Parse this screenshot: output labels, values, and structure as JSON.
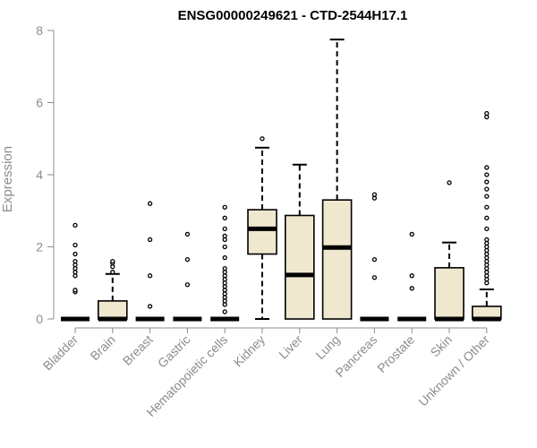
{
  "chart_data": {
    "type": "box",
    "title": "ENSG00000249621 - CTD-2544H17.1",
    "xlabel": "",
    "ylabel": "Expression",
    "ylim": [
      0,
      8
    ],
    "yticks": [
      0,
      2,
      4,
      6,
      8
    ],
    "grid": false,
    "box_fill": "#efe8cf",
    "categories": [
      "Bladder",
      "Brain",
      "Breast",
      "Gastric",
      "Hematopoietic cells",
      "Kidney",
      "Liver",
      "Lung",
      "Pancreas",
      "Prostate",
      "Skin",
      "Unknown / Other"
    ],
    "boxes": [
      {
        "q1": 0,
        "median": 0,
        "q3": 0,
        "whisker_low": 0,
        "whisker_high": 0,
        "outliers": [
          0.75,
          0.8,
          1.2,
          1.3,
          1.4,
          1.5,
          1.6,
          1.8,
          2.05,
          2.6
        ]
      },
      {
        "q1": 0,
        "median": 0,
        "q3": 0.5,
        "whisker_low": 0,
        "whisker_high": 1.25,
        "outliers": [
          1.3,
          1.45,
          1.55,
          1.6
        ]
      },
      {
        "q1": 0,
        "median": 0,
        "q3": 0,
        "whisker_low": 0,
        "whisker_high": 0,
        "outliers": [
          0.35,
          1.2,
          2.2,
          3.2
        ]
      },
      {
        "q1": 0,
        "median": 0,
        "q3": 0,
        "whisker_low": 0,
        "whisker_high": 0,
        "outliers": [
          0.95,
          1.65,
          2.35
        ]
      },
      {
        "q1": 0,
        "median": 0,
        "q3": 0,
        "whisker_low": 0,
        "whisker_high": 0,
        "outliers": [
          0.2,
          0.4,
          0.5,
          0.6,
          0.7,
          0.8,
          0.9,
          1.0,
          1.1,
          1.2,
          1.3,
          1.4,
          1.7,
          2.0,
          2.2,
          2.3,
          2.5,
          2.8,
          3.1
        ]
      },
      {
        "q1": 1.8,
        "median": 2.5,
        "q3": 3.03,
        "whisker_low": 0,
        "whisker_high": 4.75,
        "outliers": [
          5.0
        ]
      },
      {
        "q1": 0,
        "median": 1.22,
        "q3": 2.87,
        "whisker_low": 0,
        "whisker_high": 4.28,
        "outliers": []
      },
      {
        "q1": 0,
        "median": 1.98,
        "q3": 3.3,
        "whisker_low": 0,
        "whisker_high": 7.75,
        "outliers": []
      },
      {
        "q1": 0,
        "median": 0,
        "q3": 0,
        "whisker_low": 0,
        "whisker_high": 0,
        "outliers": [
          1.15,
          1.65,
          3.35,
          3.45
        ]
      },
      {
        "q1": 0,
        "median": 0,
        "q3": 0,
        "whisker_low": 0,
        "whisker_high": 0,
        "outliers": [
          0.85,
          1.2,
          2.35
        ]
      },
      {
        "q1": 0,
        "median": 0,
        "q3": 1.42,
        "whisker_low": 0,
        "whisker_high": 2.12,
        "outliers": [
          3.78
        ]
      },
      {
        "q1": 0,
        "median": 0,
        "q3": 0.35,
        "whisker_low": 0,
        "whisker_high": 0.82,
        "outliers": [
          1.0,
          1.1,
          1.2,
          1.3,
          1.4,
          1.5,
          1.6,
          1.7,
          1.8,
          1.9,
          2.0,
          2.1,
          2.2,
          2.5,
          2.8,
          3.1,
          3.4,
          3.6,
          3.8,
          4.0,
          4.2,
          5.6,
          5.7
        ]
      }
    ]
  }
}
